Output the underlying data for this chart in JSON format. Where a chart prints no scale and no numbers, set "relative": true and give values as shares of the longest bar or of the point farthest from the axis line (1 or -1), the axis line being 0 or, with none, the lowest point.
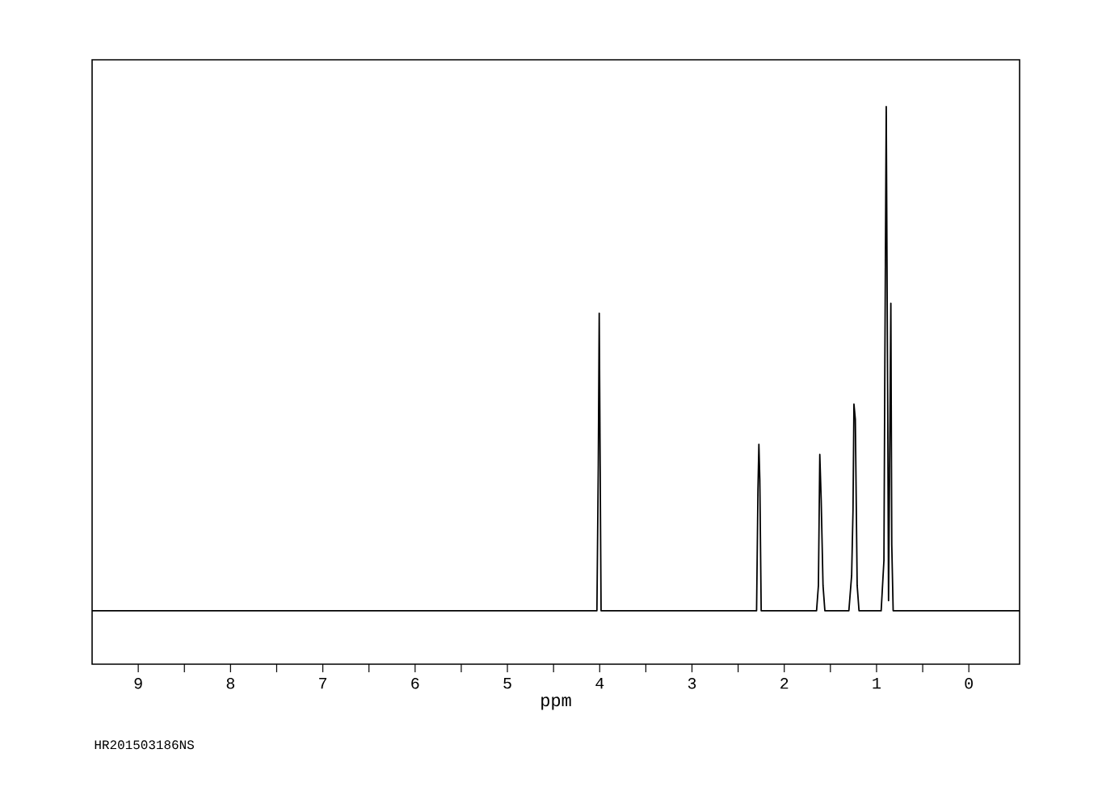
{
  "chart_data": {
    "type": "line",
    "relative": true,
    "xlabel": "ppm",
    "annotations": [
      "HR201503186NS"
    ],
    "xlim": [
      9.5,
      -0.55
    ],
    "xticks": [
      9,
      8,
      7,
      6,
      5,
      4,
      3,
      2,
      1,
      0
    ],
    "series": [
      {
        "color": "#000000",
        "x": [
          9.5,
          4.03,
          4.015,
          4.005,
          3.995,
          3.985,
          2.3,
          2.285,
          2.275,
          2.265,
          2.25,
          1.65,
          1.63,
          1.615,
          1.6,
          1.58,
          1.56,
          1.3,
          1.27,
          1.255,
          1.245,
          1.23,
          1.21,
          1.19,
          0.95,
          0.92,
          0.91,
          0.895,
          0.88,
          0.87,
          0.845,
          0.835,
          0.82,
          -0.55
        ],
        "values": [
          0,
          0,
          0.29,
          0.59,
          0.29,
          0,
          0,
          0.24,
          0.33,
          0.26,
          0,
          0,
          0.05,
          0.31,
          0.22,
          0.05,
          0,
          0,
          0.07,
          0.2,
          0.41,
          0.38,
          0.05,
          0,
          0,
          0.1,
          0.49,
          1.0,
          0.44,
          0.02,
          0.61,
          0.13,
          0,
          0
        ]
      }
    ]
  }
}
